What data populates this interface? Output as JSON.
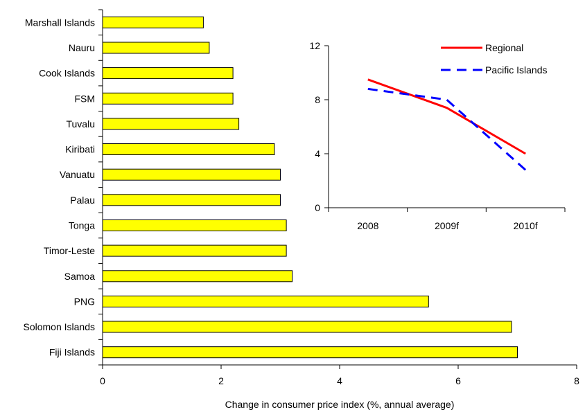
{
  "chart_data": [
    {
      "type": "bar",
      "orientation": "horizontal",
      "title": "",
      "xlabel": "Change in consumer price index (%, annual average)",
      "ylabel": "",
      "xlim": [
        0,
        8
      ],
      "xticks": [
        0,
        2,
        4,
        6,
        8
      ],
      "categories": [
        "Marshall Islands",
        "Nauru",
        "Cook Islands",
        "FSM",
        "Tuvalu",
        "Kiribati",
        "Vanuatu",
        "Palau",
        "Tonga",
        "Timor-Leste",
        "Samoa",
        "PNG",
        "Solomon Islands",
        "Fiji Islands"
      ],
      "values": [
        1.7,
        1.8,
        2.2,
        2.2,
        2.3,
        2.9,
        3.0,
        3.0,
        3.1,
        3.1,
        3.2,
        5.5,
        6.9,
        7.0
      ],
      "bar_color": "#ffff00",
      "grid": false
    },
    {
      "type": "line",
      "title": "",
      "xlabel": "",
      "ylabel": "",
      "categories": [
        "2008",
        "2009f",
        "2010f"
      ],
      "ylim": [
        0,
        12
      ],
      "yticks": [
        0,
        4,
        8,
        12
      ],
      "series": [
        {
          "name": "Regional",
          "values": [
            9.5,
            7.4,
            4.0
          ],
          "color": "#ff0000",
          "dash": "solid"
        },
        {
          "name": "Pacific Islands",
          "values": [
            8.8,
            8.0,
            2.8
          ],
          "color": "#0000ff",
          "dash": "dashed"
        }
      ],
      "legend_position": "top-right",
      "grid": false
    }
  ]
}
